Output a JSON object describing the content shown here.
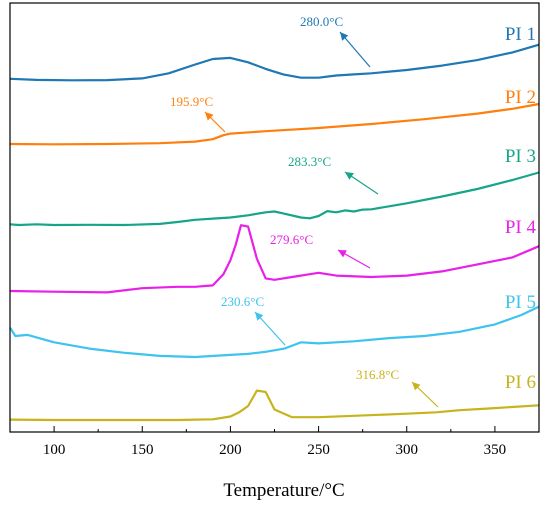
{
  "chart_data": {
    "type": "line",
    "xlabel": "Temperature/°C",
    "ylabel": "",
    "xlim": [
      75,
      375
    ],
    "xticks": [
      100,
      150,
      200,
      250,
      300,
      350
    ],
    "y_ticks_shown": false,
    "grid": false,
    "legend": "labels at right end of each curve",
    "series": [
      {
        "name": "PI 1",
        "color": "#1f77b4",
        "annotation": {
          "text": "280.0°C",
          "x": 280.0
        },
        "x": [
          75,
          90,
          110,
          130,
          150,
          165,
          180,
          190,
          200,
          210,
          220,
          230,
          240,
          250,
          260,
          270,
          280,
          300,
          320,
          340,
          360,
          375
        ],
        "y": [
          0.1,
          0.05,
          0.03,
          0.04,
          0.12,
          0.35,
          0.75,
          1.0,
          1.05,
          0.85,
          0.55,
          0.3,
          0.15,
          0.15,
          0.25,
          0.3,
          0.35,
          0.5,
          0.7,
          0.95,
          1.3,
          1.65
        ]
      },
      {
        "name": "PI 2",
        "color": "#ff7f0e",
        "annotation": {
          "text": "195.9°C",
          "x": 195.9
        },
        "x": [
          75,
          100,
          130,
          160,
          180,
          190,
          196,
          200,
          220,
          250,
          280,
          310,
          340,
          360,
          375
        ],
        "y": [
          0.0,
          -0.02,
          0.0,
          0.05,
          0.15,
          0.3,
          0.55,
          0.65,
          0.8,
          1.0,
          1.25,
          1.55,
          1.9,
          2.2,
          2.5
        ]
      },
      {
        "name": "PI 3",
        "color": "#17a589",
        "annotation": {
          "text": "283.3°C",
          "x": 283.3
        },
        "x": [
          75,
          80,
          90,
          100,
          120,
          140,
          160,
          170,
          180,
          190,
          200,
          210,
          220,
          225,
          230,
          240,
          245,
          250,
          255,
          260,
          265,
          270,
          275,
          280,
          290,
          300,
          320,
          340,
          360,
          375
        ],
        "y": [
          0.1,
          0.0,
          0.1,
          0.0,
          0.02,
          0.0,
          0.15,
          0.4,
          0.7,
          0.85,
          1.0,
          1.3,
          1.7,
          1.8,
          1.55,
          1.0,
          0.9,
          1.2,
          1.85,
          1.7,
          1.95,
          1.8,
          2.05,
          2.1,
          2.5,
          2.9,
          3.8,
          4.8,
          6.0,
          7.0
        ]
      },
      {
        "name": "PI 4",
        "color": "#e820e8",
        "annotation": {
          "text": "279.6°C",
          "x": 279.6
        },
        "x": [
          75,
          100,
          130,
          150,
          170,
          180,
          190,
          196,
          200,
          203,
          206,
          210,
          215,
          220,
          225,
          235,
          245,
          250,
          260,
          280,
          300,
          320,
          340,
          360,
          375
        ],
        "y": [
          0.0,
          -0.05,
          -0.1,
          0.2,
          0.3,
          0.3,
          0.4,
          1.2,
          2.2,
          3.3,
          4.7,
          4.6,
          2.3,
          0.9,
          0.8,
          1.0,
          1.2,
          1.3,
          1.1,
          1.0,
          1.1,
          1.4,
          1.9,
          2.4,
          3.2
        ]
      },
      {
        "name": "PI 5",
        "color": "#3ec3ef",
        "annotation": {
          "text": "230.6°C",
          "x": 230.6
        },
        "x": [
          75,
          78,
          85,
          100,
          120,
          140,
          160,
          180,
          200,
          210,
          220,
          230.6,
          240,
          250,
          270,
          290,
          310,
          330,
          350,
          365,
          375
        ],
        "y": [
          1.4,
          1.0,
          1.05,
          0.7,
          0.4,
          0.2,
          0.05,
          0.0,
          0.1,
          0.15,
          0.25,
          0.4,
          0.7,
          0.65,
          0.75,
          0.9,
          1.0,
          1.2,
          1.55,
          2.0,
          2.4
        ]
      },
      {
        "name": "PI 6",
        "color": "#c7b31b",
        "annotation": {
          "text": "316.8°C",
          "x": 316.8
        },
        "x": [
          75,
          100,
          150,
          170,
          190,
          200,
          205,
          210,
          215,
          220,
          225,
          235,
          250,
          270,
          300,
          316.8,
          330,
          350,
          375
        ],
        "y": [
          0.05,
          0.0,
          0.0,
          0.0,
          0.1,
          0.5,
          1.1,
          2.0,
          4.2,
          4.0,
          1.5,
          0.4,
          0.4,
          0.6,
          0.9,
          1.1,
          1.4,
          1.7,
          2.1
        ]
      }
    ]
  }
}
